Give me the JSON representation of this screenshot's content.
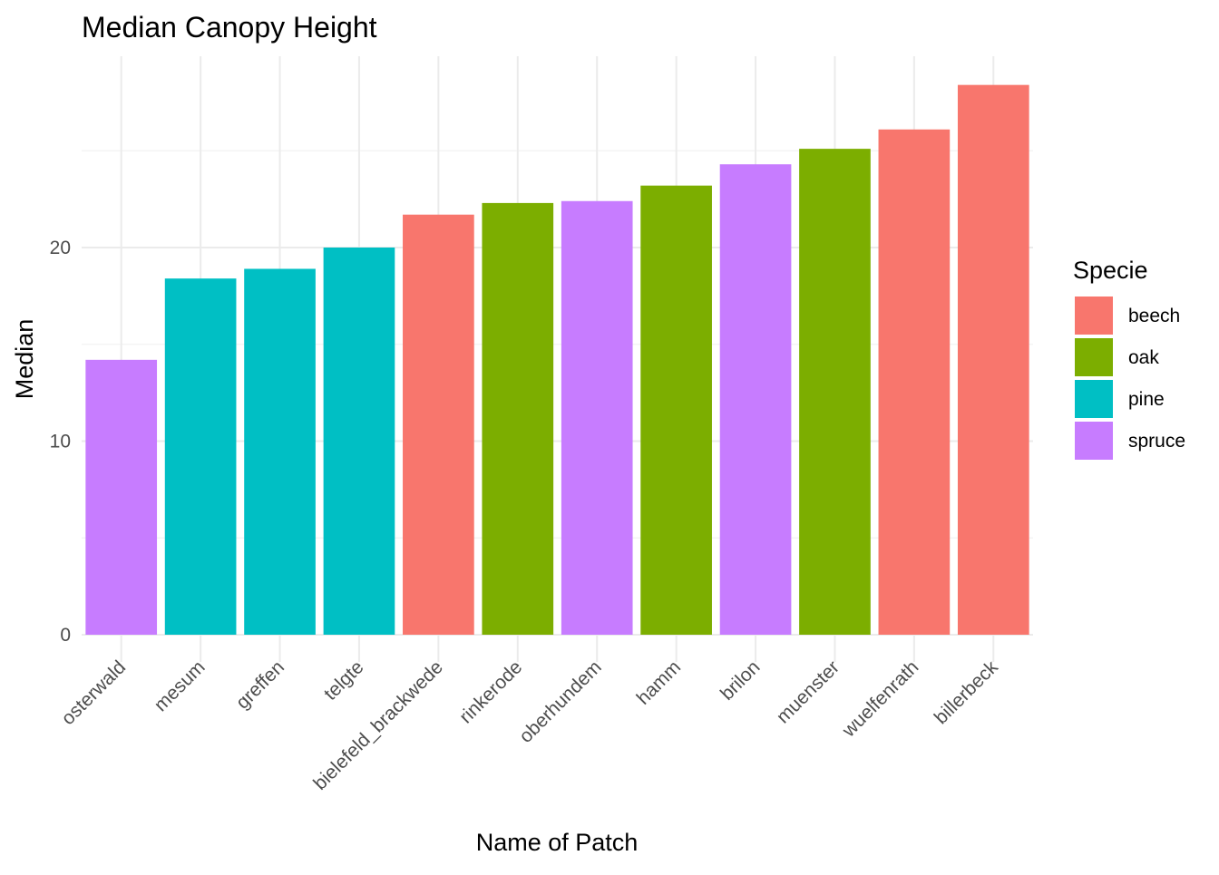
{
  "chart_data": {
    "type": "bar",
    "title": "Median Canopy Height",
    "xlabel": "Name of Patch",
    "ylabel": "Median",
    "ylim": [
      0,
      30
    ],
    "y_ticks": [
      0,
      10,
      20
    ],
    "grid": true,
    "legend": {
      "title": "Specie",
      "position": "right",
      "entries": [
        {
          "label": "beech",
          "color": "#F8766D"
        },
        {
          "label": "oak",
          "color": "#7CAE00"
        },
        {
          "label": "pine",
          "color": "#00BFC4"
        },
        {
          "label": "spruce",
          "color": "#C77CFF"
        }
      ]
    },
    "categories": [
      "osterwald",
      "mesum",
      "greffen",
      "telgte",
      "bielefeld_brackwede",
      "rinkerode",
      "oberhundem",
      "hamm",
      "brilon",
      "muenster",
      "wuelfenrath",
      "billerbeck"
    ],
    "values": [
      14.2,
      18.4,
      18.9,
      20.0,
      21.7,
      22.3,
      22.4,
      23.2,
      24.3,
      25.1,
      26.1,
      28.4
    ],
    "species": [
      "spruce",
      "pine",
      "pine",
      "pine",
      "beech",
      "oak",
      "spruce",
      "oak",
      "spruce",
      "oak",
      "beech",
      "beech"
    ]
  }
}
